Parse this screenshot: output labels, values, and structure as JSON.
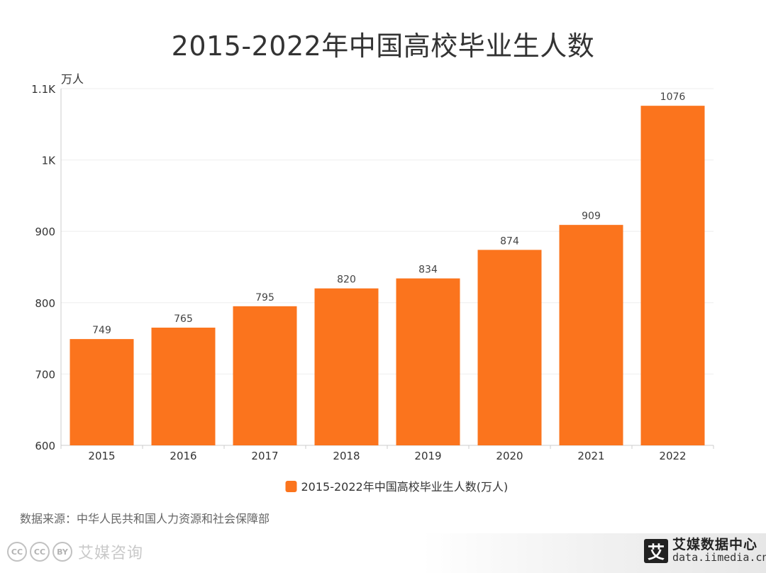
{
  "chart_data": {
    "type": "bar",
    "title": "2015-2022年中国高校毕业生人数",
    "ylabel": "万人",
    "xlabel": "",
    "categories": [
      "2015",
      "2016",
      "2017",
      "2018",
      "2019",
      "2020",
      "2021",
      "2022"
    ],
    "series": [
      {
        "name": "2015-2022年中国高校毕业生人数(万人)",
        "values": [
          749,
          765,
          795,
          820,
          834,
          874,
          909,
          1076
        ],
        "color": "#fb741d"
      }
    ],
    "ylim": [
      600,
      1100
    ],
    "yticks": [
      {
        "value": 600,
        "label": "600"
      },
      {
        "value": 700,
        "label": "700"
      },
      {
        "value": 800,
        "label": "800"
      },
      {
        "value": 900,
        "label": "900"
      },
      {
        "value": 1000,
        "label": "1K"
      },
      {
        "value": 1100,
        "label": "1.1K"
      }
    ],
    "grid": true,
    "legend_position": "bottom"
  },
  "source_text": "数据来源：中华人民共和国人力资源和社会保障部",
  "footer": {
    "cc_icons": [
      "CC",
      "CC",
      "BY"
    ],
    "watermark_text": "艾媒咨询",
    "logo_mark": "艾",
    "logo_name": "艾媒数据中心",
    "logo_url": "data.iimedia.cn"
  },
  "colors": {
    "bar": "#fb741d",
    "grid": "#eeeeee",
    "axis": "#cccccc",
    "text": "#333333"
  }
}
